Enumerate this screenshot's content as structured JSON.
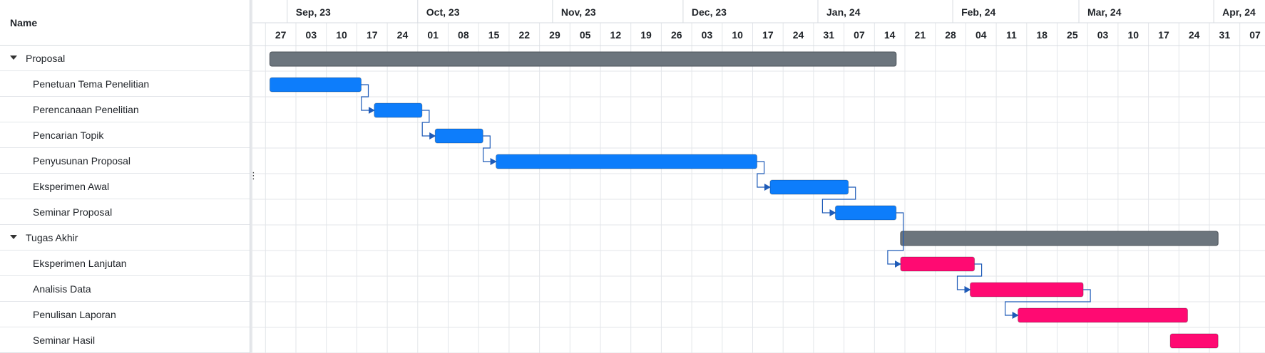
{
  "left_panel": {
    "name_header": "Name"
  },
  "timeline": {
    "start_date": "2023-08-24",
    "end_date": "2024-04-10",
    "months": [
      "Sep, 23",
      "Oct, 23",
      "Nov, 23",
      "Dec, 23",
      "Jan, 24",
      "Feb, 24",
      "Mar, 24",
      "Apr, 24"
    ],
    "weeks": [
      "27",
      "03",
      "10",
      "17",
      "24",
      "01",
      "08",
      "15",
      "22",
      "29",
      "05",
      "12",
      "19",
      "26",
      "03",
      "10",
      "17",
      "24",
      "31",
      "07",
      "14",
      "21",
      "28",
      "04",
      "11",
      "18",
      "25",
      "03",
      "10",
      "17",
      "24",
      "31",
      "07"
    ]
  },
  "colors": {
    "group_bar": "#6c757d",
    "phase1_bar": "#0d7dfb",
    "phase2_bar": "#ff0a72",
    "link": "#1e5bb8",
    "grid": "#e3e6ea"
  },
  "tasks": [
    {
      "name": "Proposal",
      "type": "group",
      "start": "2023-08-28",
      "end": "2024-01-19"
    },
    {
      "name": "Penetuan Tema Penelitian",
      "type": "task",
      "phase": 1,
      "start": "2023-08-28",
      "end": "2023-09-18"
    },
    {
      "name": "Perencanaan Penelitian",
      "type": "task",
      "phase": 1,
      "start": "2023-09-21",
      "end": "2023-10-02"
    },
    {
      "name": "Pencarian Topik",
      "type": "task",
      "phase": 1,
      "start": "2023-10-05",
      "end": "2023-10-16"
    },
    {
      "name": "Penyusunan Proposal",
      "type": "task",
      "phase": 1,
      "start": "2023-10-19",
      "end": "2023-12-18"
    },
    {
      "name": "Eksperimen Awal",
      "type": "task",
      "phase": 1,
      "start": "2023-12-21",
      "end": "2024-01-08"
    },
    {
      "name": "Seminar Proposal",
      "type": "task",
      "phase": 1,
      "start": "2024-01-05",
      "end": "2024-01-19"
    },
    {
      "name": "Tugas Akhir",
      "type": "group",
      "start": "2024-01-20",
      "end": "2024-04-02"
    },
    {
      "name": "Eksperimen Lanjutan",
      "type": "task",
      "phase": 2,
      "start": "2024-01-20",
      "end": "2024-02-06"
    },
    {
      "name": "Analisis Data",
      "type": "task",
      "phase": 2,
      "start": "2024-02-05",
      "end": "2024-03-02"
    },
    {
      "name": "Penulisan Laporan",
      "type": "task",
      "phase": 2,
      "start": "2024-02-16",
      "end": "2024-03-26"
    },
    {
      "name": "Seminar Hasil",
      "type": "task",
      "phase": 2,
      "start": "2024-03-22",
      "end": "2024-04-02"
    }
  ],
  "links": [
    [
      1,
      2
    ],
    [
      2,
      3
    ],
    [
      3,
      4
    ],
    [
      4,
      5
    ],
    [
      5,
      6
    ],
    [
      6,
      8
    ],
    [
      8,
      9
    ],
    [
      9,
      10
    ]
  ]
}
